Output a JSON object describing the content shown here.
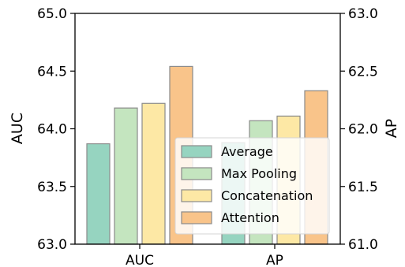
{
  "chart_data": {
    "type": "bar",
    "categories": [
      "AUC",
      "AP"
    ],
    "series": [
      {
        "name": "Average",
        "color": "#96d4c0",
        "values": [
          63.87,
          61.88
        ]
      },
      {
        "name": "Max Pooling",
        "color": "#c4e5bf",
        "values": [
          64.18,
          62.07
        ]
      },
      {
        "name": "Concatenation",
        "color": "#fde8a5",
        "values": [
          64.22,
          62.11
        ]
      },
      {
        "name": "Attention",
        "color": "#f9c48a",
        "values": [
          64.54,
          62.33
        ]
      }
    ],
    "ylabel_left": "AUC",
    "ylabel_right": "AP",
    "ylim_left": [
      63.0,
      65.0
    ],
    "ylim_right": [
      61.0,
      63.0
    ],
    "yticks_left": [
      "63.0",
      "63.5",
      "64.0",
      "64.5",
      "65.0"
    ],
    "yticks_right": [
      "61.0",
      "61.5",
      "62.0",
      "62.5",
      "63.0"
    ],
    "yticks_left_values": [
      63.0,
      63.5,
      64.0,
      64.5,
      65.0
    ],
    "yticks_right_values": [
      61.0,
      61.5,
      62.0,
      62.5,
      63.0
    ],
    "bar_edge_color": "#8a8a8a",
    "legend_position": "lower-right",
    "grid": false
  }
}
